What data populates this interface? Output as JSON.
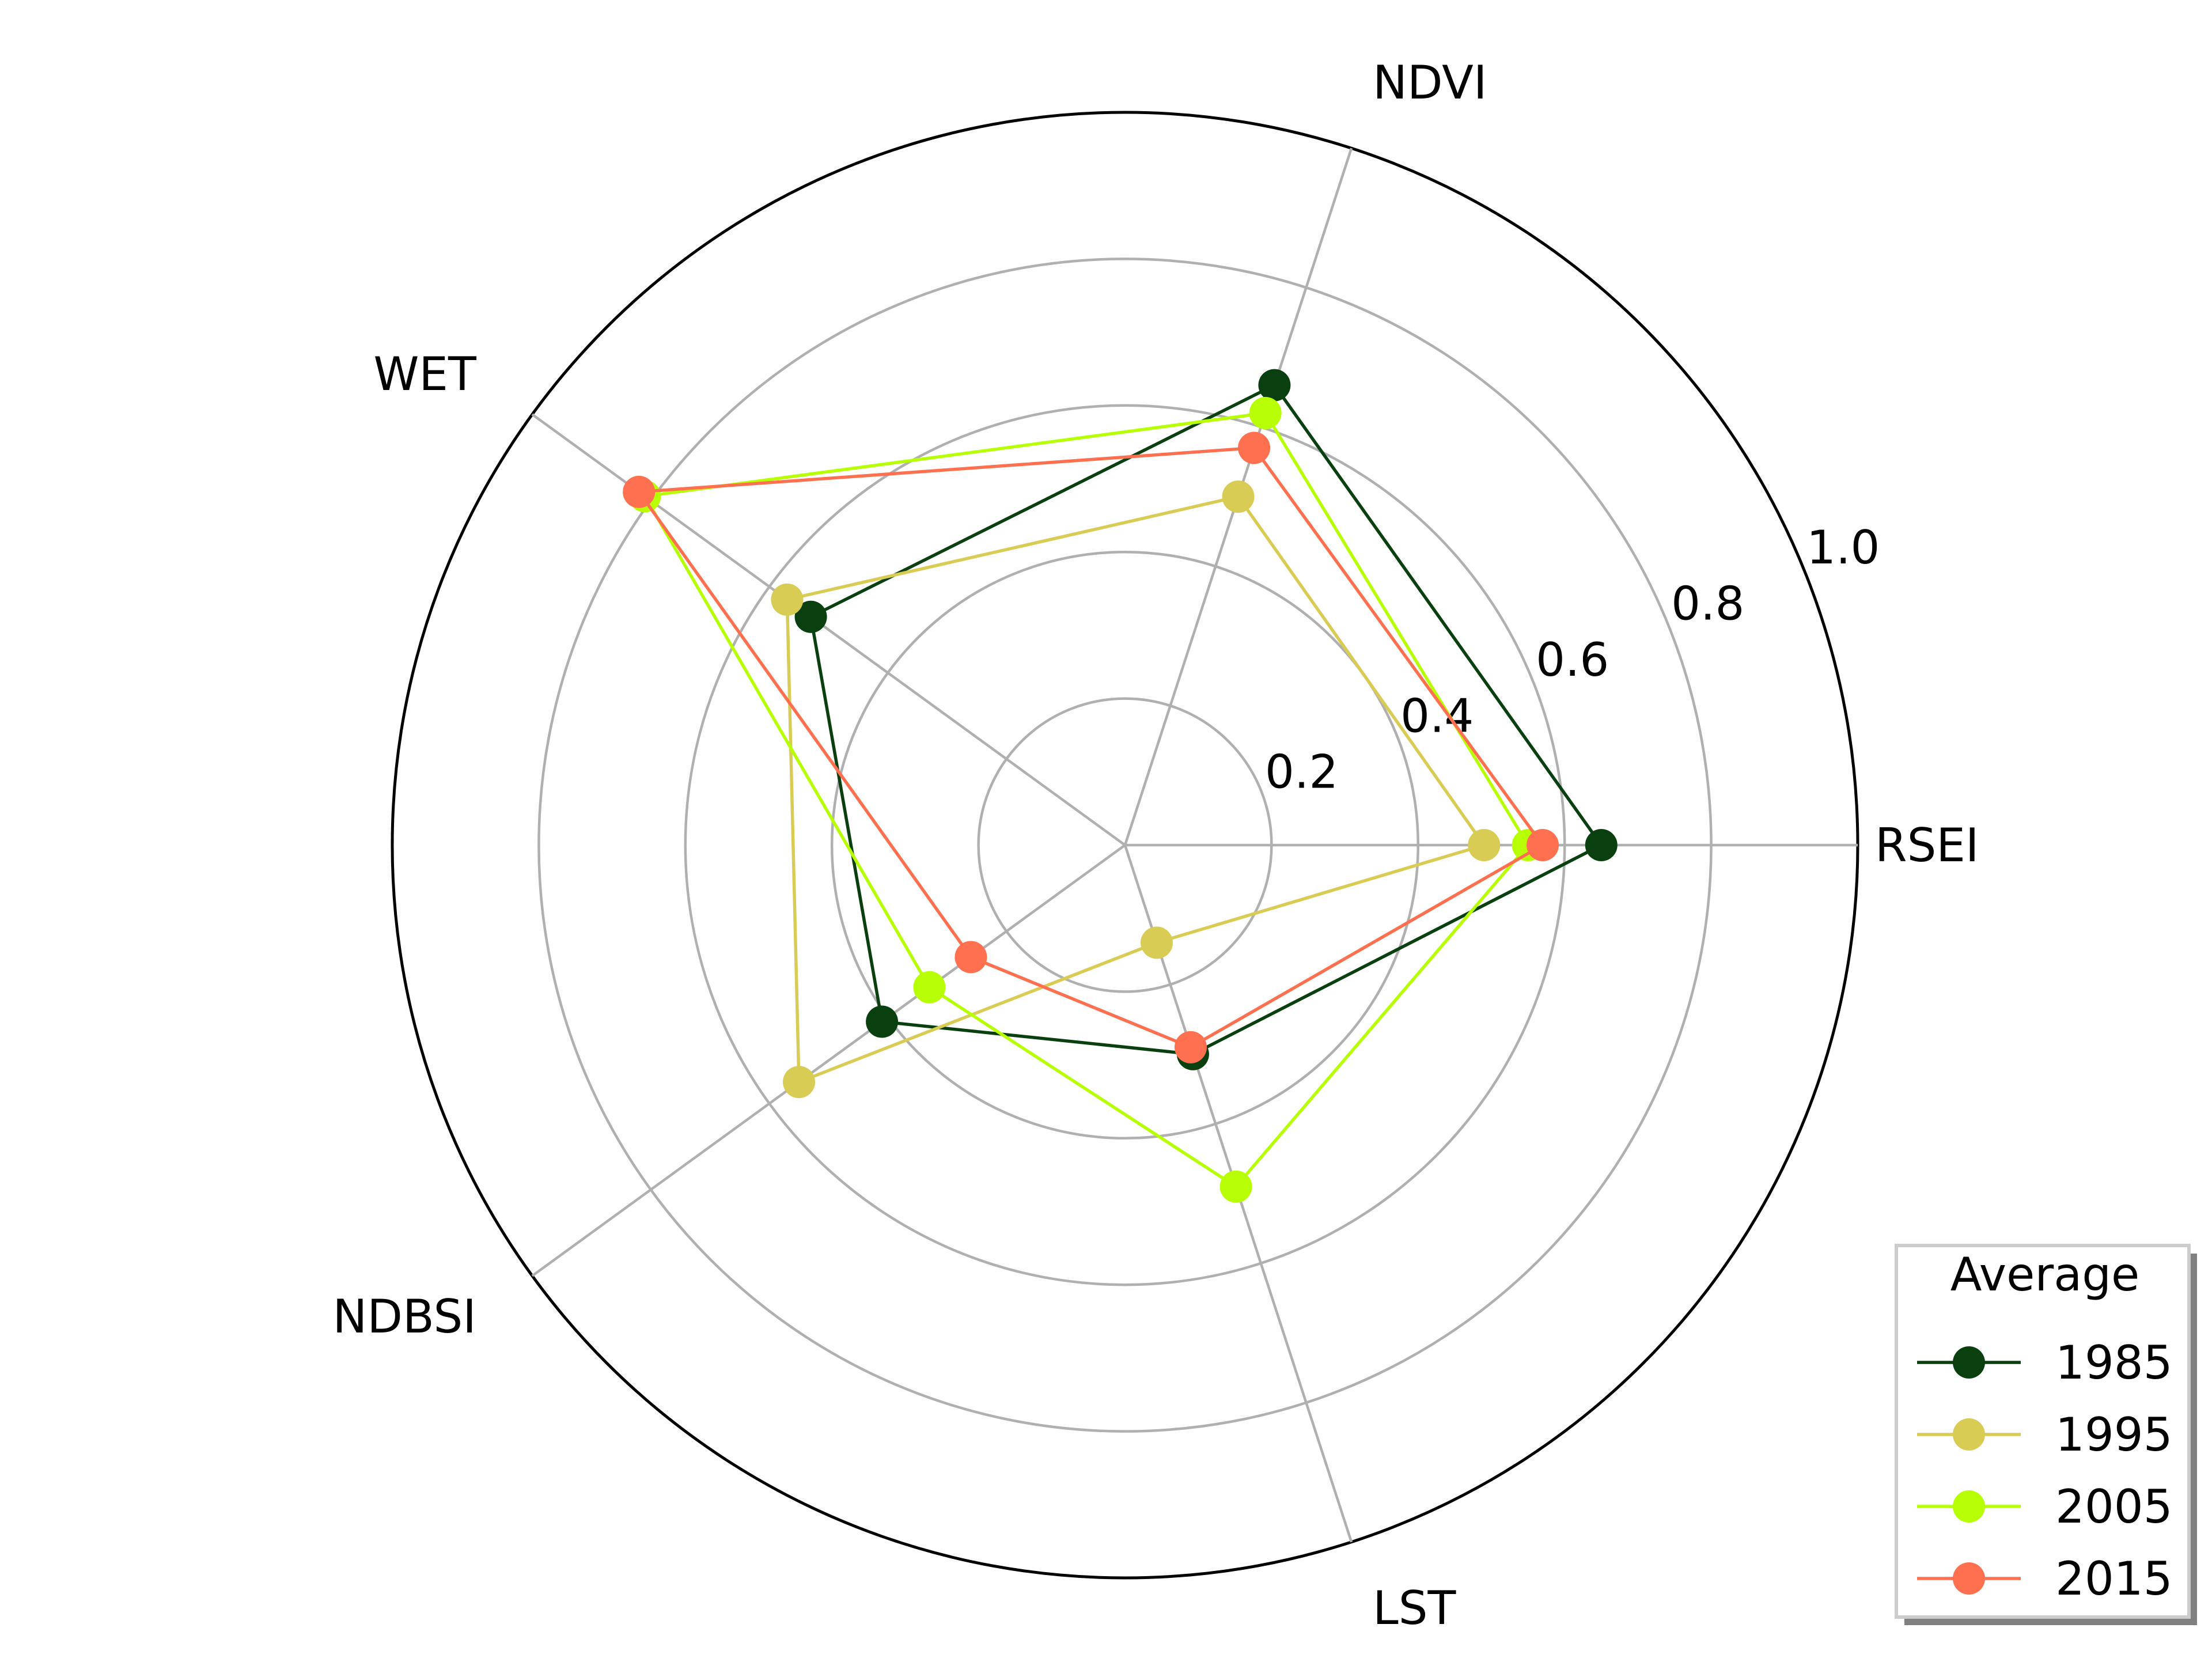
{
  "chart_data": {
    "type": "radar",
    "axes": [
      "RSEI",
      "NDVI",
      "WET",
      "NDBSI",
      "LST"
    ],
    "radial_ticks": [
      "0.2",
      "0.4",
      "0.6",
      "0.8",
      "1.0"
    ],
    "rlim": [
      0,
      1.0
    ],
    "grid": true,
    "legend": {
      "title": "Average",
      "position": "lower-right"
    },
    "series": [
      {
        "name": "1985",
        "color": "#0a4010",
        "values": [
          0.65,
          0.66,
          0.53,
          0.41,
          0.3
        ]
      },
      {
        "name": "1995",
        "color": "#d9cc55",
        "values": [
          0.49,
          0.5,
          0.57,
          0.55,
          0.14
        ]
      },
      {
        "name": "2005",
        "color": "#b8ff05",
        "values": [
          0.55,
          0.62,
          0.81,
          0.33,
          0.49
        ]
      },
      {
        "name": "2015",
        "color": "#ff7050",
        "values": [
          0.57,
          0.57,
          0.82,
          0.26,
          0.29
        ]
      }
    ]
  }
}
